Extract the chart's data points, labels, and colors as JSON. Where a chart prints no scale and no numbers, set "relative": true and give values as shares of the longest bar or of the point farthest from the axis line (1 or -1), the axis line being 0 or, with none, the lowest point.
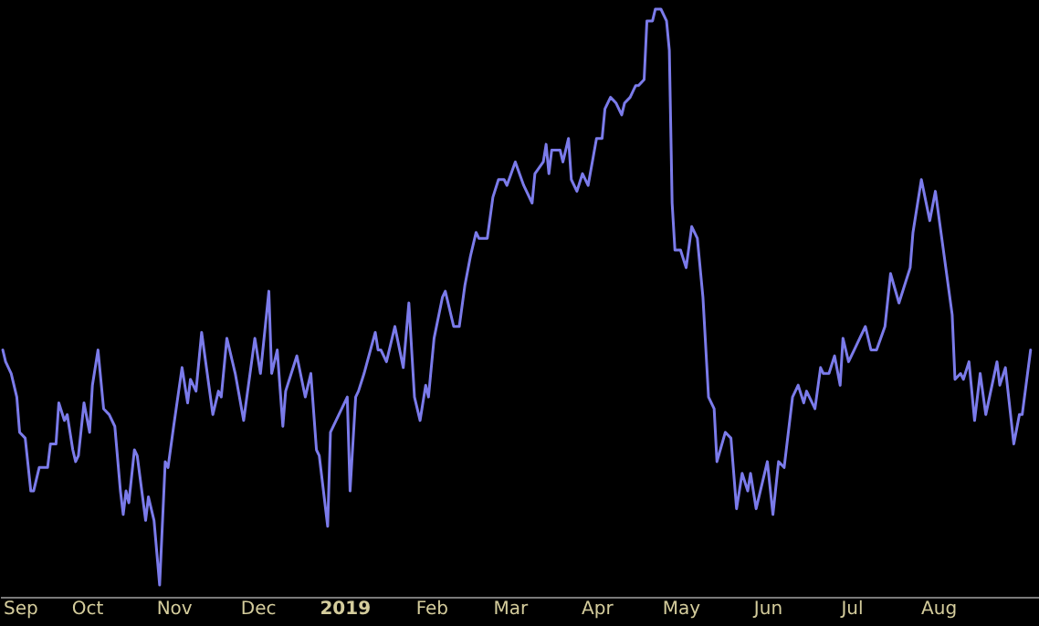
{
  "chart_data": {
    "type": "line",
    "relative": true,
    "color": "#7b7bea",
    "grid": false,
    "marker": "none",
    "line_style": "solid",
    "xlim": [
      "2018-08-31",
      "2019-09-06"
    ],
    "xticks": [
      {
        "value": "2018-09-01",
        "label": "Sep"
      },
      {
        "value": "2018-10-01",
        "label": "Oct"
      },
      {
        "value": "2018-11-01",
        "label": "Nov"
      },
      {
        "value": "2018-12-01",
        "label": "Dec"
      },
      {
        "value": "2019-01-01",
        "label": "2019"
      },
      {
        "value": "2019-02-01",
        "label": "Feb"
      },
      {
        "value": "2019-03-01",
        "label": "Mar"
      },
      {
        "value": "2019-04-01",
        "label": "Apr"
      },
      {
        "value": "2019-05-01",
        "label": "May"
      },
      {
        "value": "2019-06-01",
        "label": "Jun"
      },
      {
        "value": "2019-07-01",
        "label": "Jul"
      },
      {
        "value": "2019-08-01",
        "label": "Aug"
      }
    ],
    "x": [
      "2018-09-01",
      "2018-09-02",
      "2018-09-04",
      "2018-09-06",
      "2018-09-07",
      "2018-09-09",
      "2018-09-11",
      "2018-09-12",
      "2018-09-14",
      "2018-09-17",
      "2018-09-18",
      "2018-09-20",
      "2018-09-21",
      "2018-09-23",
      "2018-09-24",
      "2018-09-26",
      "2018-09-27",
      "2018-09-28",
      "2018-09-30",
      "2018-10-02",
      "2018-10-03",
      "2018-10-05",
      "2018-10-07",
      "2018-10-09",
      "2018-10-11",
      "2018-10-13",
      "2018-10-14",
      "2018-10-15",
      "2018-10-16",
      "2018-10-18",
      "2018-10-19",
      "2018-10-22",
      "2018-10-23",
      "2018-10-25",
      "2018-10-27",
      "2018-10-29",
      "2018-10-30",
      "2018-11-01",
      "2018-11-04",
      "2018-11-06",
      "2018-11-07",
      "2018-11-09",
      "2018-11-11",
      "2018-11-13",
      "2018-11-15",
      "2018-11-17",
      "2018-11-18",
      "2018-11-20",
      "2018-11-23",
      "2018-11-26",
      "2018-11-30",
      "2018-12-02",
      "2018-12-05",
      "2018-12-06",
      "2018-12-08",
      "2018-12-10",
      "2018-12-11",
      "2018-12-15",
      "2018-12-18",
      "2018-12-20",
      "2018-12-22",
      "2018-12-23",
      "2018-12-26",
      "2018-12-27",
      "2018-12-30",
      "2019-01-02",
      "2019-01-03",
      "2019-01-05",
      "2019-01-06",
      "2019-01-08",
      "2019-01-12",
      "2019-01-13",
      "2019-01-14",
      "2019-01-16",
      "2019-01-19",
      "2019-01-22",
      "2019-01-24",
      "2019-01-26",
      "2019-01-28",
      "2019-01-30",
      "2019-01-31",
      "2019-02-02",
      "2019-02-05",
      "2019-02-06",
      "2019-02-09",
      "2019-02-11",
      "2019-02-13",
      "2019-02-15",
      "2019-02-17",
      "2019-02-18",
      "2019-02-21",
      "2019-02-23",
      "2019-02-25",
      "2019-02-27",
      "2019-02-28",
      "2019-03-03",
      "2019-03-06",
      "2019-03-09",
      "2019-03-10",
      "2019-03-13",
      "2019-03-14",
      "2019-03-15",
      "2019-03-16",
      "2019-03-19",
      "2019-03-20",
      "2019-03-22",
      "2019-03-23",
      "2019-03-25",
      "2019-03-27",
      "2019-03-29",
      "2019-04-01",
      "2019-04-03",
      "2019-04-04",
      "2019-04-06",
      "2019-04-08",
      "2019-04-10",
      "2019-04-11",
      "2019-04-13",
      "2019-04-15",
      "2019-04-16",
      "2019-04-18",
      "2019-04-19",
      "2019-04-21",
      "2019-04-22",
      "2019-04-24",
      "2019-04-26",
      "2019-04-27",
      "2019-04-28",
      "2019-04-29",
      "2019-05-01",
      "2019-05-03",
      "2019-05-05",
      "2019-05-07",
      "2019-05-09",
      "2019-05-11",
      "2019-05-13",
      "2019-05-14",
      "2019-05-17",
      "2019-05-19",
      "2019-05-21",
      "2019-05-23",
      "2019-05-25",
      "2019-05-26",
      "2019-05-28",
      "2019-06-01",
      "2019-06-03",
      "2019-06-05",
      "2019-06-07",
      "2019-06-10",
      "2019-06-12",
      "2019-06-14",
      "2019-06-15",
      "2019-06-18",
      "2019-06-20",
      "2019-06-21",
      "2019-06-23",
      "2019-06-25",
      "2019-06-27",
      "2019-06-28",
      "2019-06-30",
      "2019-07-02",
      "2019-07-04",
      "2019-07-06",
      "2019-07-08",
      "2019-07-10",
      "2019-07-13",
      "2019-07-15",
      "2019-07-18",
      "2019-07-22",
      "2019-07-23",
      "2019-07-26",
      "2019-07-29",
      "2019-07-31",
      "2019-08-02",
      "2019-08-06",
      "2019-08-07",
      "2019-08-09",
      "2019-08-10",
      "2019-08-12",
      "2019-08-14",
      "2019-08-16",
      "2019-08-18",
      "2019-08-22",
      "2019-08-23",
      "2019-08-25",
      "2019-08-28",
      "2019-08-30",
      "2019-08-31",
      "2019-09-03"
    ],
    "values": [
      0.42,
      0.4,
      0.38,
      0.34,
      0.28,
      0.27,
      0.18,
      0.18,
      0.22,
      0.22,
      0.26,
      0.26,
      0.33,
      0.3,
      0.31,
      0.25,
      0.23,
      0.24,
      0.33,
      0.28,
      0.36,
      0.42,
      0.32,
      0.31,
      0.29,
      0.18,
      0.14,
      0.18,
      0.16,
      0.25,
      0.24,
      0.13,
      0.17,
      0.13,
      0.02,
      0.23,
      0.22,
      0.29,
      0.39,
      0.33,
      0.37,
      0.35,
      0.45,
      0.38,
      0.31,
      0.35,
      0.34,
      0.44,
      0.38,
      0.3,
      0.44,
      0.38,
      0.52,
      0.38,
      0.42,
      0.29,
      0.35,
      0.41,
      0.34,
      0.38,
      0.25,
      0.24,
      0.12,
      0.28,
      0.31,
      0.34,
      0.18,
      0.34,
      0.35,
      0.38,
      0.45,
      0.42,
      0.42,
      0.4,
      0.46,
      0.39,
      0.5,
      0.34,
      0.3,
      0.36,
      0.34,
      0.44,
      0.51,
      0.52,
      0.46,
      0.46,
      0.53,
      0.58,
      0.62,
      0.61,
      0.61,
      0.68,
      0.71,
      0.71,
      0.7,
      0.74,
      0.7,
      0.67,
      0.72,
      0.74,
      0.77,
      0.72,
      0.76,
      0.76,
      0.74,
      0.78,
      0.71,
      0.69,
      0.72,
      0.7,
      0.78,
      0.78,
      0.83,
      0.85,
      0.84,
      0.82,
      0.84,
      0.85,
      0.87,
      0.87,
      0.88,
      0.98,
      0.98,
      1.0,
      1.0,
      0.98,
      0.93,
      0.67,
      0.59,
      0.59,
      0.56,
      0.63,
      0.61,
      0.51,
      0.34,
      0.32,
      0.23,
      0.28,
      0.27,
      0.15,
      0.21,
      0.18,
      0.21,
      0.15,
      0.23,
      0.14,
      0.23,
      0.22,
      0.34,
      0.36,
      0.33,
      0.35,
      0.32,
      0.39,
      0.38,
      0.38,
      0.41,
      0.36,
      0.44,
      0.4,
      0.42,
      0.44,
      0.46,
      0.42,
      0.42,
      0.46,
      0.55,
      0.5,
      0.56,
      0.62,
      0.71,
      0.64,
      0.69,
      0.62,
      0.48,
      0.37,
      0.38,
      0.37,
      0.4,
      0.3,
      0.38,
      0.31,
      0.4,
      0.36,
      0.39,
      0.26,
      0.31,
      0.31,
      0.42
    ]
  }
}
